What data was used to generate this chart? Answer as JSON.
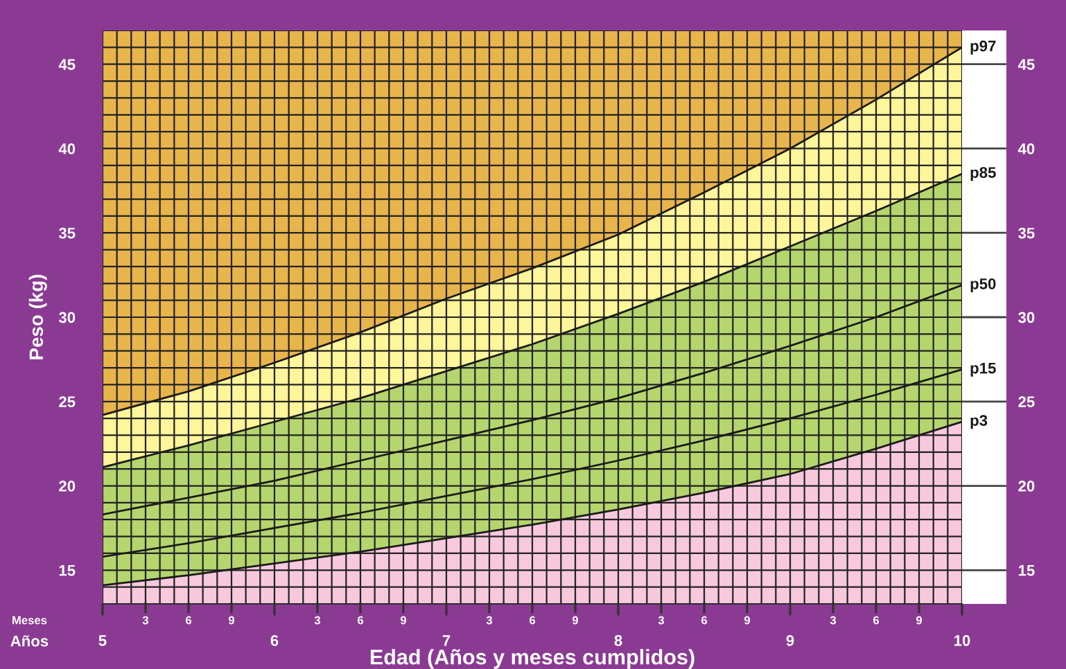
{
  "chart_data": {
    "type": "line",
    "xlabel": "Edad (Años y meses cumplidos)",
    "ylabel": "Peso (kg)",
    "annotations": [
      "Meses",
      "Años",
      "3",
      "6",
      "9",
      "3",
      "6",
      "9",
      "3",
      "6",
      "9",
      "3",
      "6",
      "9",
      "3",
      "6",
      "9"
    ],
    "x": [
      5,
      5.5,
      6,
      6.5,
      7,
      7.5,
      8,
      8.5,
      9,
      9.5,
      10
    ],
    "series": [
      {
        "name": "p3",
        "type": "area",
        "color": "#f7c8de",
        "values": [
          14.1,
          14.7,
          15.4,
          16.1,
          16.9,
          17.7,
          18.6,
          19.6,
          20.7,
          22.2,
          23.8
        ]
      },
      {
        "name": "p15",
        "type": "line",
        "color": "#1a1a1a",
        "values": [
          15.8,
          16.6,
          17.5,
          18.4,
          19.4,
          20.4,
          21.5,
          22.7,
          24.0,
          25.4,
          26.9
        ]
      },
      {
        "name": "p50",
        "type": "line",
        "color": "#1a1a1a",
        "values": [
          18.3,
          19.3,
          20.3,
          21.5,
          22.7,
          23.9,
          25.2,
          26.7,
          28.3,
          30.0,
          31.9
        ]
      },
      {
        "name": "p85",
        "type": "area",
        "color": "#b5d56e",
        "values": [
          21.1,
          22.4,
          23.8,
          25.2,
          26.8,
          28.4,
          30.2,
          32.1,
          34.2,
          36.3,
          38.5
        ]
      },
      {
        "name": "p97",
        "type": "area",
        "color": "#fff59a",
        "values": [
          24.2,
          25.6,
          27.3,
          29.1,
          31.1,
          32.9,
          34.9,
          37.4,
          40.0,
          42.9,
          46.0
        ]
      }
    ],
    "bands": [
      {
        "axis": "y",
        "from": 13,
        "to": 47,
        "color": "#e8b44c"
      }
    ],
    "xlim": [
      5,
      10
    ],
    "xticks": [
      5,
      6,
      7,
      8,
      9,
      10
    ],
    "ylim": [
      13,
      47
    ],
    "yticks": [
      15,
      20,
      25,
      30,
      35,
      40,
      45
    ],
    "y2lim": [
      13,
      47
    ],
    "y2ticks": [
      15,
      20,
      25,
      30,
      35,
      40,
      45
    ],
    "grid": true,
    "line_style": "solid",
    "marker": "none"
  }
}
